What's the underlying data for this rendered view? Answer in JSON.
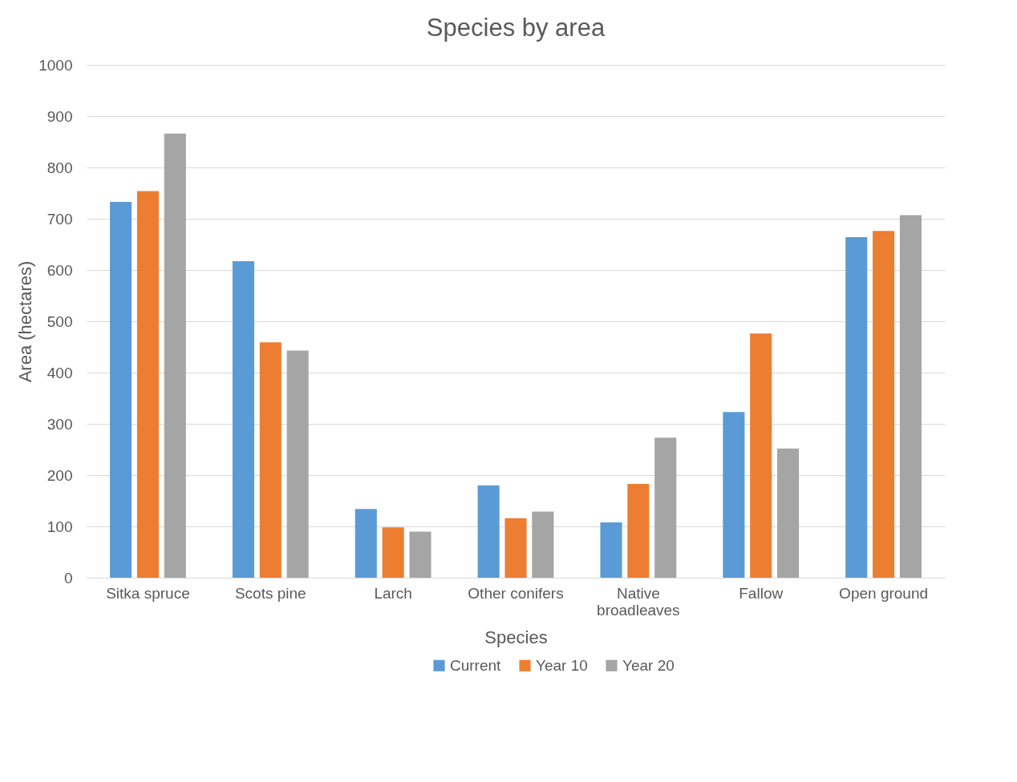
{
  "chart_data": {
    "type": "bar",
    "title": "Species by area",
    "xlabel": "Species",
    "ylabel": "Area (hectares)",
    "categories": [
      "Sitka spruce",
      "Scots pine",
      "Larch",
      "Other conifers",
      "Native broadleaves",
      "Fallow",
      "Open ground"
    ],
    "series": [
      {
        "name": "Current",
        "color": "#5b9bd5",
        "values": [
          733,
          617,
          134,
          180,
          108,
          323,
          664
        ]
      },
      {
        "name": "Year 10",
        "color": "#ed7d31",
        "values": [
          754,
          459,
          98,
          116,
          183,
          476,
          676
        ]
      },
      {
        "name": "Year 20",
        "color": "#a5a5a5",
        "values": [
          866,
          443,
          90,
          129,
          273,
          252,
          707
        ]
      }
    ],
    "ylim": [
      0,
      1000
    ],
    "yticks": [
      0,
      100,
      200,
      300,
      400,
      500,
      600,
      700,
      800,
      900,
      1000
    ],
    "grid": "y",
    "legend": "bottom"
  }
}
